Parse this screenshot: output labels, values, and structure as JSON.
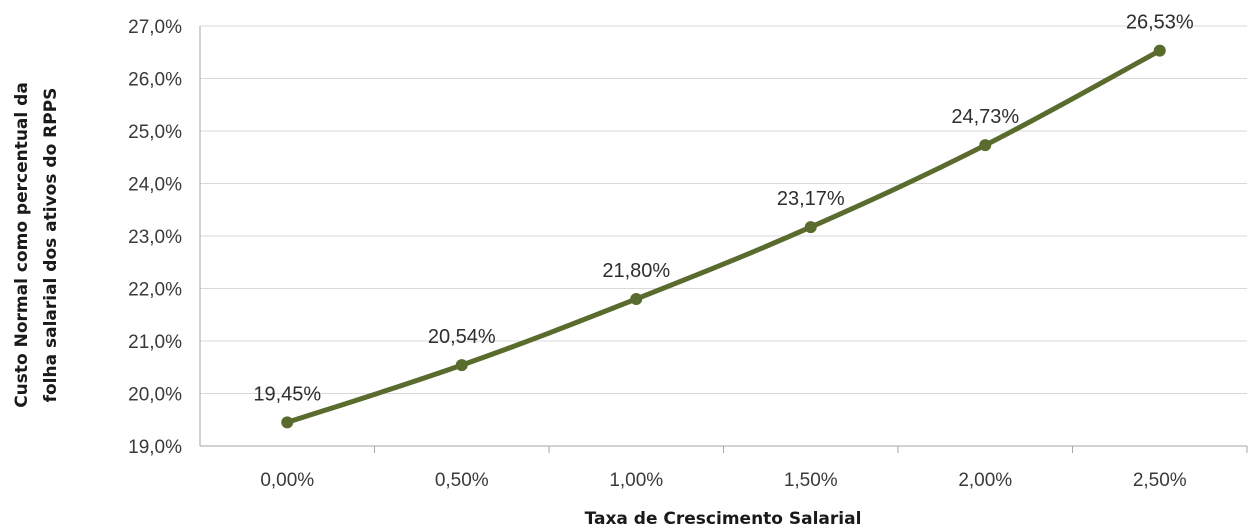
{
  "chart_data": {
    "type": "line",
    "title": "",
    "xlabel": "Taxa de Crescimento Salarial",
    "ylabel_lines": [
      "Custo Normal como percentual da",
      "folha salarial dos ativos do RPPS"
    ],
    "x": [
      "0,00%",
      "0,50%",
      "1,00%",
      "1,50%",
      "2,00%",
      "2,50%"
    ],
    "series": [
      {
        "values": [
          19.45,
          20.54,
          21.8,
          23.17,
          24.73,
          26.53
        ],
        "labels": [
          "19,45%",
          "20,54%",
          "21,80%",
          "23,17%",
          "24,73%",
          "26,53%"
        ],
        "color": "#5a6b2e"
      }
    ],
    "ylim": [
      19.0,
      27.0
    ],
    "yticks": [
      19.0,
      20.0,
      21.0,
      22.0,
      23.0,
      24.0,
      25.0,
      26.0,
      27.0
    ],
    "ytick_labels": [
      "19,0%",
      "20,0%",
      "21,0%",
      "22,0%",
      "23,0%",
      "24,0%",
      "25,0%",
      "26,0%",
      "27,0%"
    ],
    "grid": true,
    "legend": "none",
    "colors": {
      "line": "#5a6b2e",
      "grid": "#d9d9d9",
      "axis": "#a6a6a6"
    }
  }
}
